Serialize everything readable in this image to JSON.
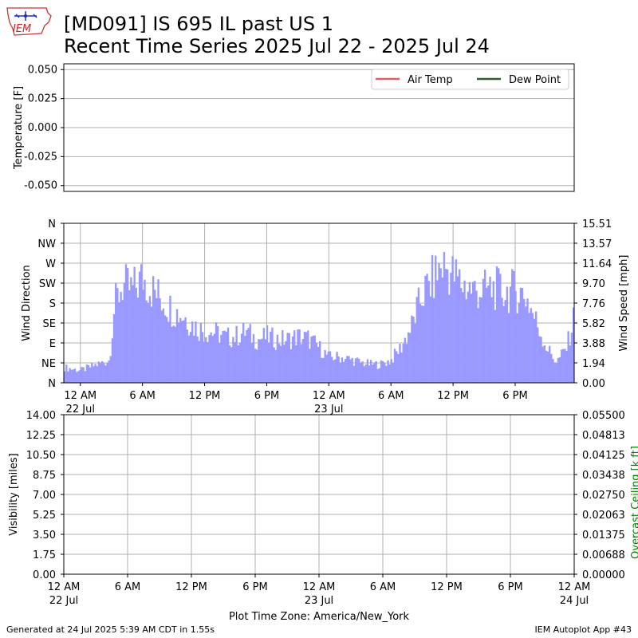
{
  "header": {
    "title_line1": "[MD091] IS 695 IL past US 1",
    "title_line2": "Recent Time Series 2025 Jul 22 - 2025 Jul 24",
    "logo_text": "IEM"
  },
  "footer": {
    "generated": "Generated at 24 Jul 2025 5:39 AM CDT in 1.55s",
    "app": "IEM Autoplot App #43"
  },
  "colors": {
    "air_temp": "#e06060",
    "dew_point": "#2e5e2e",
    "wind_bars": "#9999ff",
    "grid": "#b0b0b0",
    "ceiling_label": "#008000"
  },
  "chart_data": [
    {
      "type": "line",
      "panel": "temperature",
      "ylabel": "Temperature [F]",
      "ylim": [
        -0.055,
        0.055
      ],
      "yticks": [
        "0.050",
        "0.025",
        "0.000",
        "-0.025",
        "-0.050"
      ],
      "ytick_values": [
        0.05,
        0.025,
        0,
        -0.025,
        -0.05
      ],
      "grid": true,
      "legend_position": "top-right",
      "series": [
        {
          "name": "Air Temp",
          "values": []
        },
        {
          "name": "Dew Point",
          "values": []
        }
      ]
    },
    {
      "type": "bar",
      "panel": "wind",
      "ylabel_left": "Wind Direction",
      "ylabel_right": "Wind Speed [mph]",
      "left_ticks": [
        "N",
        "NE",
        "E",
        "SE",
        "S",
        "SW",
        "W",
        "NW",
        "N"
      ],
      "right_ticks": [
        "0.00",
        "1.94",
        "3.88",
        "5.82",
        "7.76",
        "9.70",
        "11.64",
        "13.57",
        "15.51"
      ],
      "ylim": [
        0,
        15.51
      ],
      "x_range_hours": [
        -1.6,
        47.7
      ],
      "x_ticks": [
        {
          "hour": 0,
          "label": "12 AM",
          "sub": "22 Jul"
        },
        {
          "hour": 6,
          "label": "6 AM",
          "sub": ""
        },
        {
          "hour": 12,
          "label": "12 PM",
          "sub": ""
        },
        {
          "hour": 18,
          "label": "6 PM",
          "sub": ""
        },
        {
          "hour": 24,
          "label": "12 AM",
          "sub": "23 Jul"
        },
        {
          "hour": 30,
          "label": "6 AM",
          "sub": ""
        },
        {
          "hour": 36,
          "label": "12 PM",
          "sub": ""
        },
        {
          "hour": 42,
          "label": "6 PM",
          "sub": ""
        }
      ],
      "grid": true,
      "series": [
        {
          "hours": [
            -1.6,
            0,
            2.8,
            3.3,
            4,
            5,
            6,
            7,
            8,
            9,
            10,
            11,
            12,
            13,
            14,
            15,
            16,
            17,
            18,
            19,
            20,
            21,
            22,
            23,
            24,
            25,
            26,
            27,
            28,
            29,
            30,
            31,
            32,
            33,
            34,
            35,
            36,
            37,
            38,
            39,
            40,
            41,
            42,
            43,
            44,
            45,
            46,
            47,
            47.7
          ],
          "values": [
            1.5,
            1.2,
            2.2,
            7.5,
            9.5,
            9.0,
            10.2,
            9.0,
            8.0,
            7.0,
            6.5,
            5.5,
            5.0,
            4.9,
            4.4,
            4.5,
            5.0,
            4.2,
            4.5,
            4.2,
            4.2,
            4.5,
            4.3,
            3.5,
            2.5,
            2.5,
            2.3,
            2.0,
            1.8,
            1.8,
            2.2,
            3.5,
            5.5,
            8.5,
            10.0,
            11.5,
            10.5,
            9.5,
            9.0,
            9.0,
            9.2,
            8.8,
            9.0,
            8.5,
            6.0,
            3.5,
            2.0,
            3.5,
            6.5
          ]
        }
      ]
    },
    {
      "type": "line",
      "panel": "visibility",
      "ylabel_left": "Visibility [miles]",
      "ylabel_right": "Overcast Ceiling [k ft]",
      "left_ticks": [
        "0.00",
        "1.75",
        "3.50",
        "5.25",
        "7.00",
        "8.75",
        "10.50",
        "12.25",
        "14.00"
      ],
      "right_ticks": [
        "0.00000",
        "0.00688",
        "0.01375",
        "0.02063",
        "0.02750",
        "0.03438",
        "0.04125",
        "0.04813",
        "0.05500"
      ],
      "ylim": [
        0,
        14
      ],
      "ylim_right": [
        0,
        0.055
      ],
      "x_ticks": [
        {
          "hour": 0,
          "label": "12 AM",
          "sub": "22 Jul"
        },
        {
          "hour": 6,
          "label": "6 AM",
          "sub": ""
        },
        {
          "hour": 12,
          "label": "12 PM",
          "sub": ""
        },
        {
          "hour": 18,
          "label": "6 PM",
          "sub": ""
        },
        {
          "hour": 24,
          "label": "12 AM",
          "sub": "23 Jul"
        },
        {
          "hour": 30,
          "label": "6 AM",
          "sub": ""
        },
        {
          "hour": 36,
          "label": "12 PM",
          "sub": ""
        },
        {
          "hour": 42,
          "label": "6 PM",
          "sub": ""
        },
        {
          "hour": 48,
          "label": "12 AM",
          "sub": "24 Jul"
        }
      ],
      "xlabel": "Plot Time Zone: America/New_York",
      "grid": true,
      "series": []
    }
  ]
}
